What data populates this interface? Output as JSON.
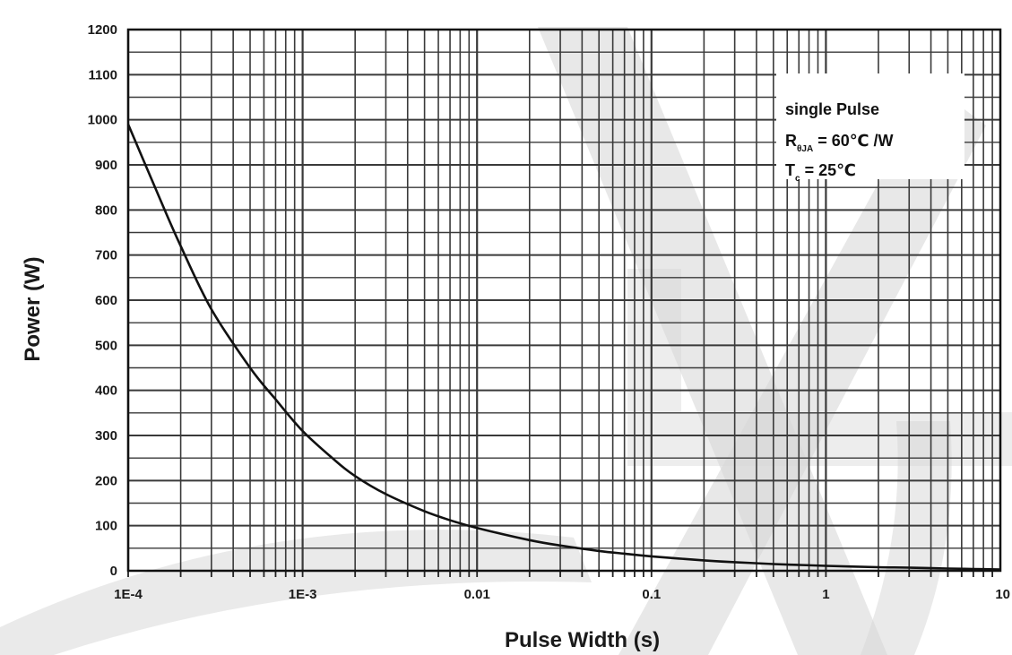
{
  "chart_data": {
    "type": "line",
    "title": "",
    "xlabel": "Pulse Width (s)",
    "ylabel": "Power (W)",
    "x_scale": "log",
    "xlim": [
      0.0001,
      10
    ],
    "ylim": [
      0,
      1200
    ],
    "x_ticks": [
      0.0001,
      0.001,
      0.01,
      0.1,
      1,
      10
    ],
    "x_tick_labels": [
      "1E-4",
      "1E-3",
      "0.01",
      "0.1",
      "1",
      "10"
    ],
    "y_ticks": [
      0,
      100,
      200,
      300,
      400,
      500,
      600,
      700,
      800,
      900,
      1000,
      1100,
      1200
    ],
    "y_tick_labels": [
      "0",
      "100",
      "200",
      "300",
      "400",
      "500",
      "600",
      "700",
      "800",
      "900",
      "1000",
      "1100",
      "1200"
    ],
    "grid": true,
    "legend_position": "top-right",
    "annotation": {
      "line1": "single Pulse",
      "line2_main": "R",
      "line2_sub": "θJA",
      "line2_rest": " = 60℃ /W",
      "line3_main": "T",
      "line3_sub": "c",
      "line3_rest": " = 25℃"
    },
    "series": [
      {
        "x": [
          0.0001,
          0.00015,
          0.0002,
          0.0003,
          0.0005,
          0.0007,
          0.001,
          0.0015,
          0.002,
          0.003,
          0.005,
          0.007,
          0.01,
          0.02,
          0.03,
          0.05,
          0.07,
          0.1,
          0.2,
          0.3,
          0.5,
          0.7,
          1,
          2,
          3,
          5,
          7,
          10
        ],
        "y": [
          990,
          830,
          720,
          580,
          450,
          380,
          310,
          248,
          210,
          170,
          132,
          112,
          95,
          68,
          56,
          44,
          38,
          32,
          23,
          19,
          15,
          13,
          11,
          8,
          7,
          5,
          4,
          3
        ]
      }
    ],
    "colors": {
      "line": "#111111",
      "grid": "#3a3a3a",
      "watermark": "#d6d6d6"
    }
  }
}
